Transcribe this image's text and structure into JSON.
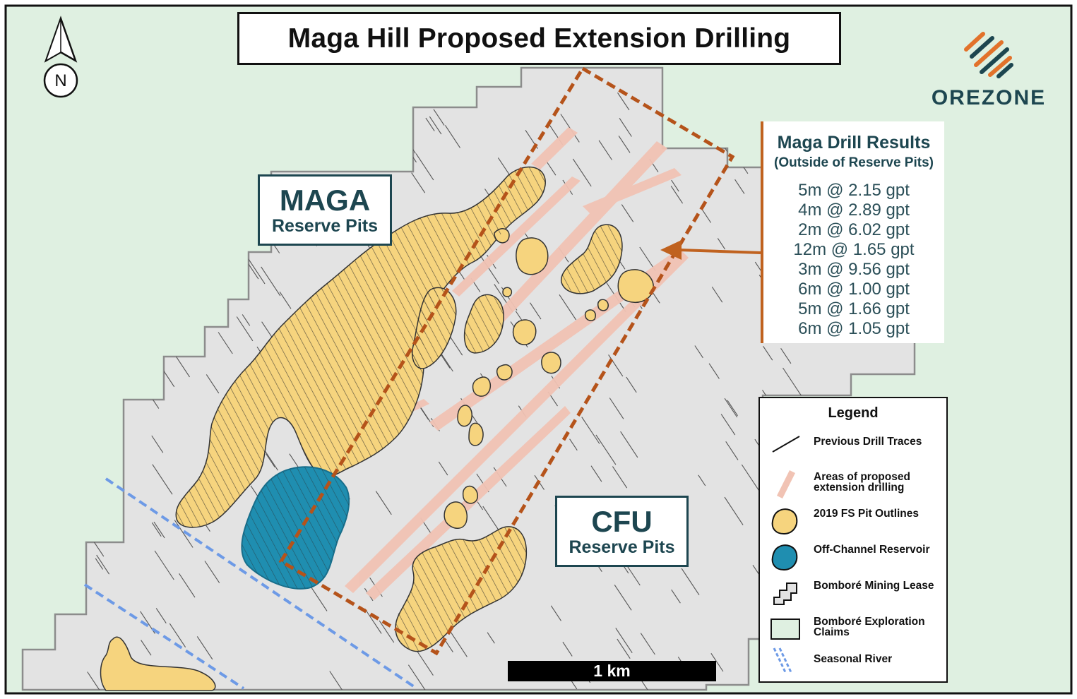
{
  "title": "Maga Hill Proposed Extension Drilling",
  "north_label": "N",
  "brand": {
    "name": "OREZONE"
  },
  "pit_labels": {
    "maga": {
      "name": "MAGA",
      "sub": "Reserve Pits"
    },
    "cfu": {
      "name": "CFU",
      "sub": "Reserve Pits"
    }
  },
  "drill_results": {
    "title": "Maga Drill Results",
    "subtitle": "(Outside of Reserve Pits)",
    "items": [
      "5m @ 2.15 gpt",
      "4m @ 2.89 gpt",
      "2m @ 6.02 gpt",
      "12m @ 1.65 gpt",
      "3m @ 9.56 gpt",
      "6m @ 1.00 gpt",
      "5m @ 1.66 gpt",
      "6m @ 1.05 gpt"
    ]
  },
  "legend": {
    "title": "Legend",
    "items": [
      {
        "label": "Previous Drill Traces",
        "icon": "drill-trace"
      },
      {
        "label": "Areas of proposed extension drilling",
        "icon": "proposed-area"
      },
      {
        "label": "2019 FS Pit Outlines",
        "icon": "pit-outline"
      },
      {
        "label": "Off-Channel Reservoir",
        "icon": "reservoir"
      },
      {
        "label": "Bomboré Mining Lease",
        "icon": "mining-lease"
      },
      {
        "label": "Bomboré Exploration Claims",
        "icon": "exploration-claims"
      },
      {
        "label": "Seasonal River",
        "icon": "seasonal-river"
      }
    ]
  },
  "scale_bar": {
    "label": "1 km"
  },
  "colors": {
    "claims_green": "#dff0e1",
    "lease_grey": "#e3e3e3",
    "pit_yellow": "#f6d47e",
    "reservoir_blue": "#1f8eb0",
    "proposed_pink": "#f1c3b4",
    "drill_box_orange": "#b5531a",
    "river_blue": "#6d9ae6",
    "text_teal": "#1d4650"
  }
}
